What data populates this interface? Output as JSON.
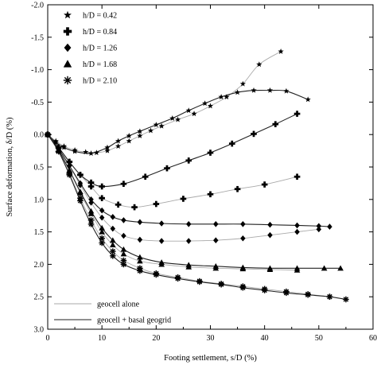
{
  "chart_data": {
    "type": "line",
    "xlabel": "Footing settlement, s/D (%)",
    "ylabel": "Surface deformation, δ/D (%)",
    "xlim": [
      0,
      60
    ],
    "ylim": [
      -2.0,
      3.0
    ],
    "y_inverted": true,
    "x_ticks": [
      "0",
      "10",
      "20",
      "30",
      "40",
      "50",
      "60"
    ],
    "y_ticks": [
      "-2.0",
      "-1.5",
      "-1.0",
      "-0.5",
      "0.0",
      "0.5",
      "1.0",
      "1.5",
      "2.0",
      "2.5",
      "3.0"
    ],
    "grid": false,
    "marker_legend": [
      {
        "label": "h/D = 0.42",
        "marker": "star"
      },
      {
        "label": "h/D = 0.84",
        "marker": "plus"
      },
      {
        "label": "h/D = 1.26",
        "marker": "diamond"
      },
      {
        "label": "h/D = 1.68",
        "marker": "triangle"
      },
      {
        "label": "h/D = 2.10",
        "marker": "asterisk"
      }
    ],
    "line_legend": [
      {
        "label": "geocell alone",
        "color": "#aaaaaa"
      },
      {
        "label": "geocell + basal geogrid",
        "color": "#222222"
      }
    ],
    "series": [
      {
        "h_over_D": 0.42,
        "reinforcement": "geocell alone",
        "marker": "star",
        "x": [
          0,
          1.5,
          3,
          5,
          7,
          9,
          11,
          13,
          15,
          17,
          19,
          21,
          24,
          27,
          30,
          33,
          36,
          39,
          43
        ],
        "y": [
          0,
          0.1,
          0.18,
          0.24,
          0.27,
          0.28,
          0.25,
          0.18,
          0.1,
          0.02,
          -0.06,
          -0.13,
          -0.23,
          -0.32,
          -0.44,
          -0.58,
          -0.78,
          -1.08,
          -1.28
        ]
      },
      {
        "h_over_D": 0.42,
        "reinforcement": "geocell + basal geogrid",
        "marker": "star",
        "x": [
          0,
          1.5,
          3,
          5,
          8,
          11,
          13,
          15,
          17,
          20,
          23,
          26,
          29,
          32,
          35,
          38,
          41,
          44,
          48
        ],
        "y": [
          0,
          0.12,
          0.2,
          0.26,
          0.29,
          0.2,
          0.1,
          0.02,
          -0.05,
          -0.15,
          -0.25,
          -0.37,
          -0.48,
          -0.58,
          -0.65,
          -0.68,
          -0.68,
          -0.67,
          -0.54
        ]
      },
      {
        "h_over_D": 0.84,
        "reinforcement": "geocell alone",
        "marker": "plus",
        "x": [
          0,
          2,
          4,
          6,
          8,
          10,
          13,
          16,
          20,
          25,
          30,
          35,
          40,
          46
        ],
        "y": [
          0,
          0.2,
          0.42,
          0.62,
          0.8,
          0.98,
          1.08,
          1.12,
          1.07,
          0.99,
          0.92,
          0.84,
          0.77,
          0.65
        ]
      },
      {
        "h_over_D": 0.84,
        "reinforcement": "geocell + basal geogrid",
        "marker": "plus",
        "x": [
          0,
          2,
          4,
          6,
          8,
          10,
          14,
          18,
          22,
          26,
          30,
          34,
          38,
          42,
          46
        ],
        "y": [
          0,
          0.2,
          0.42,
          0.62,
          0.74,
          0.8,
          0.76,
          0.65,
          0.52,
          0.4,
          0.28,
          0.14,
          -0.01,
          -0.16,
          -0.32
        ]
      },
      {
        "h_over_D": 1.26,
        "reinforcement": "geocell alone",
        "marker": "diamond",
        "x": [
          0,
          2,
          4,
          6,
          8,
          10,
          12,
          14,
          17,
          21,
          26,
          31,
          36,
          41,
          46,
          50
        ],
        "y": [
          0,
          0.22,
          0.48,
          0.78,
          1.05,
          1.28,
          1.45,
          1.56,
          1.62,
          1.64,
          1.64,
          1.63,
          1.6,
          1.55,
          1.5,
          1.46
        ]
      },
      {
        "h_over_D": 1.26,
        "reinforcement": "geocell + basal geogrid",
        "marker": "diamond",
        "x": [
          0,
          2,
          4,
          6,
          8,
          10,
          12,
          14,
          17,
          21,
          26,
          31,
          36,
          41,
          46,
          50,
          52
        ],
        "y": [
          0,
          0.22,
          0.48,
          0.75,
          1.0,
          1.17,
          1.27,
          1.32,
          1.35,
          1.37,
          1.38,
          1.38,
          1.38,
          1.39,
          1.4,
          1.41,
          1.42
        ]
      },
      {
        "h_over_D": 1.68,
        "reinforcement": "geocell alone",
        "marker": "triangle",
        "x": [
          0,
          2,
          4,
          6,
          8,
          10,
          12,
          14,
          17,
          21,
          26,
          31,
          36,
          41,
          46
        ],
        "y": [
          0,
          0.24,
          0.55,
          0.9,
          1.22,
          1.5,
          1.7,
          1.84,
          1.95,
          2.0,
          2.04,
          2.06,
          2.07,
          2.08,
          2.09
        ]
      },
      {
        "h_over_D": 1.68,
        "reinforcement": "geocell + basal geogrid",
        "marker": "triangle",
        "x": [
          0,
          2,
          4,
          6,
          8,
          10,
          12,
          14,
          17,
          21,
          26,
          31,
          36,
          41,
          46,
          51,
          54
        ],
        "y": [
          0,
          0.24,
          0.55,
          0.88,
          1.18,
          1.44,
          1.63,
          1.77,
          1.89,
          1.97,
          2.01,
          2.03,
          2.05,
          2.06,
          2.06,
          2.06,
          2.06
        ]
      },
      {
        "h_over_D": 2.1,
        "reinforcement": "geocell alone",
        "marker": "asterisk",
        "x": [
          0,
          2,
          4,
          6,
          8,
          10,
          12,
          14,
          17,
          20,
          24,
          28,
          32,
          36,
          40,
          44,
          48,
          52
        ],
        "y": [
          0,
          0.26,
          0.6,
          0.98,
          1.32,
          1.6,
          1.8,
          1.94,
          2.06,
          2.14,
          2.2,
          2.26,
          2.3,
          2.34,
          2.38,
          2.42,
          2.46,
          2.5
        ]
      },
      {
        "h_over_D": 2.1,
        "reinforcement": "geocell + basal geogrid",
        "marker": "asterisk",
        "x": [
          0,
          2,
          4,
          6,
          8,
          10,
          12,
          14,
          17,
          20,
          24,
          28,
          32,
          36,
          40,
          44,
          48,
          52,
          55
        ],
        "y": [
          0,
          0.26,
          0.62,
          1.02,
          1.38,
          1.67,
          1.87,
          2.0,
          2.1,
          2.16,
          2.22,
          2.27,
          2.31,
          2.36,
          2.4,
          2.44,
          2.47,
          2.5,
          2.54
        ]
      }
    ]
  }
}
